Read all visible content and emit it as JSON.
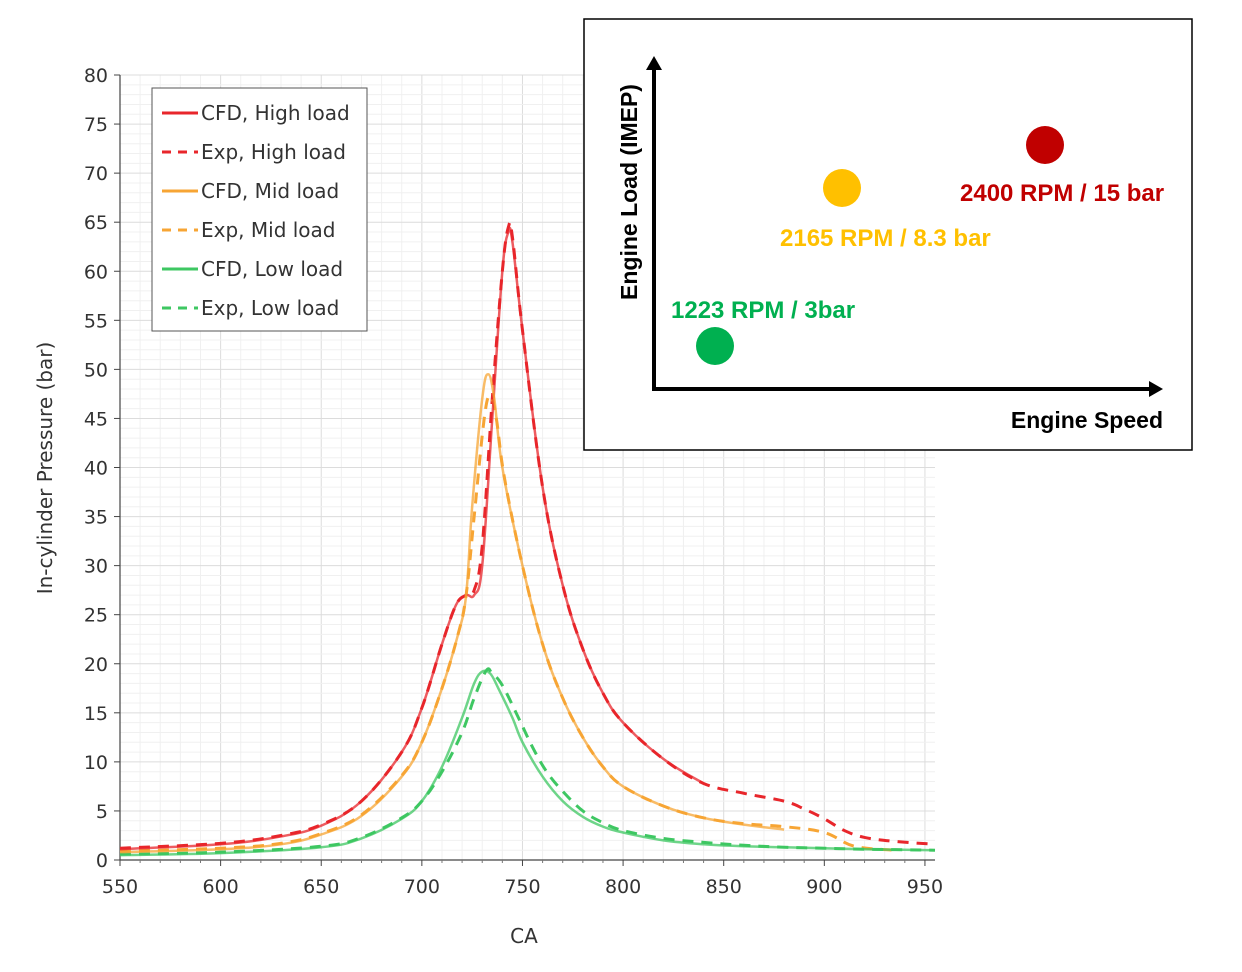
{
  "chart_data": [
    {
      "type": "line",
      "xlabel": "CA",
      "ylabel": "In-cylinder Pressure (bar)",
      "xlim": [
        550,
        955
      ],
      "ylim": [
        0,
        80
      ],
      "xticks": [
        550,
        600,
        650,
        700,
        750,
        800,
        850,
        900,
        950
      ],
      "yticks": [
        0,
        5,
        10,
        15,
        20,
        25,
        30,
        35,
        40,
        45,
        50,
        55,
        60,
        65,
        70,
        75,
        80
      ],
      "grid": true,
      "legend_position": "top-left",
      "series": [
        {
          "name": "CFD, High load",
          "color": "#e8262b",
          "dash": "solid",
          "x": [
            550,
            600,
            630,
            650,
            670,
            690,
            700,
            710,
            717,
            722,
            726,
            730,
            735,
            740,
            743,
            745,
            750,
            760,
            770,
            780,
            790,
            800,
            820,
            840
          ],
          "y": [
            1.1,
            1.6,
            2.4,
            3.5,
            6,
            11,
            15.5,
            22,
            26,
            27,
            27,
            30,
            45,
            60,
            64,
            63,
            54,
            38,
            28,
            21.5,
            17,
            14,
            10.3,
            7.8
          ]
        },
        {
          "name": "Exp, High load",
          "color": "#e8262b",
          "dash": "dashed",
          "x": [
            550,
            600,
            630,
            650,
            670,
            690,
            700,
            710,
            717,
            722,
            726,
            730,
            735,
            740,
            743,
            745,
            750,
            760,
            770,
            780,
            790,
            800,
            820,
            840,
            860,
            880,
            890,
            900,
            910,
            920,
            935,
            955
          ],
          "y": [
            1.2,
            1.7,
            2.5,
            3.6,
            6,
            11,
            15.5,
            22,
            26,
            27,
            27.5,
            32,
            47,
            60,
            64.5,
            63.5,
            54,
            38,
            28,
            21.5,
            17,
            14,
            10.3,
            7.8,
            6.8,
            6,
            5.2,
            4.2,
            3,
            2.3,
            1.9,
            1.6
          ]
        },
        {
          "name": "CFD, Mid load",
          "color": "#f7a534",
          "dash": "solid",
          "x": [
            550,
            600,
            630,
            650,
            670,
            690,
            700,
            710,
            718,
            722,
            725,
            730,
            733,
            736,
            740,
            750,
            760,
            770,
            780,
            790,
            800,
            820,
            840,
            860,
            880
          ],
          "y": [
            0.8,
            1.1,
            1.6,
            2.6,
            4.5,
            8.5,
            12,
            17.5,
            23,
            27,
            36,
            47,
            49.5,
            47,
            40,
            30,
            22,
            16.5,
            12.5,
            9.5,
            7.5,
            5.5,
            4.3,
            3.6,
            3.1
          ]
        },
        {
          "name": "Exp, Mid load",
          "color": "#f7a534",
          "dash": "dashed",
          "x": [
            550,
            600,
            630,
            650,
            670,
            690,
            700,
            710,
            718,
            722,
            726,
            731,
            734,
            737,
            741,
            750,
            760,
            770,
            780,
            790,
            800,
            820,
            840,
            860,
            880,
            900,
            915,
            935
          ],
          "y": [
            0.9,
            1.2,
            1.7,
            2.7,
            4.6,
            8.6,
            12,
            17.5,
            23,
            27,
            35,
            45,
            47.3,
            45,
            39,
            30,
            22,
            16.5,
            12.5,
            9.5,
            7.5,
            5.5,
            4.3,
            3.7,
            3.4,
            2.8,
            1.4,
            1
          ]
        },
        {
          "name": "CFD, Low load",
          "color": "#3ec762",
          "dash": "solid",
          "x": [
            550,
            600,
            650,
            670,
            690,
            700,
            710,
            720,
            726,
            730,
            734,
            738,
            745,
            750,
            760,
            770,
            780,
            790,
            800,
            820,
            840,
            860,
            880,
            900,
            920,
            955
          ],
          "y": [
            0.5,
            0.7,
            1.3,
            2.2,
            4.2,
            6,
            9.5,
            14.5,
            18,
            19.2,
            19,
            17.5,
            14.5,
            12,
            8.5,
            6,
            4.4,
            3.4,
            2.8,
            2,
            1.6,
            1.4,
            1.3,
            1.2,
            1.1,
            1
          ]
        },
        {
          "name": "Exp, Low load",
          "color": "#3ec762",
          "dash": "dashed",
          "x": [
            550,
            600,
            650,
            670,
            690,
            700,
            710,
            720,
            726,
            732,
            735,
            740,
            748,
            755,
            762,
            770,
            780,
            790,
            800,
            820,
            840,
            860,
            880,
            900,
            920,
            955
          ],
          "y": [
            0.6,
            0.8,
            1.4,
            2.3,
            4.3,
            6,
            9,
            13,
            16.5,
            19.3,
            19,
            17.8,
            14.5,
            11.5,
            9,
            7,
            5,
            3.8,
            3,
            2.2,
            1.8,
            1.5,
            1.3,
            1.2,
            1.1,
            1
          ]
        }
      ]
    },
    {
      "type": "scatter",
      "xlabel": "Engine Speed",
      "ylabel": "Engine Load (IMEP)",
      "x_axis_ticks": false,
      "points": [
        {
          "label": "1223 RPM / 3bar",
          "speed_rpm": 1223,
          "imep_bar": 3,
          "color": "#00b050"
        },
        {
          "label": "2165 RPM / 8.3 bar",
          "speed_rpm": 2165,
          "imep_bar": 8.3,
          "color": "#ffc000"
        },
        {
          "label": "2400 RPM / 15 bar",
          "speed_rpm": 2400,
          "imep_bar": 15,
          "color": "#c00000"
        }
      ]
    }
  ]
}
